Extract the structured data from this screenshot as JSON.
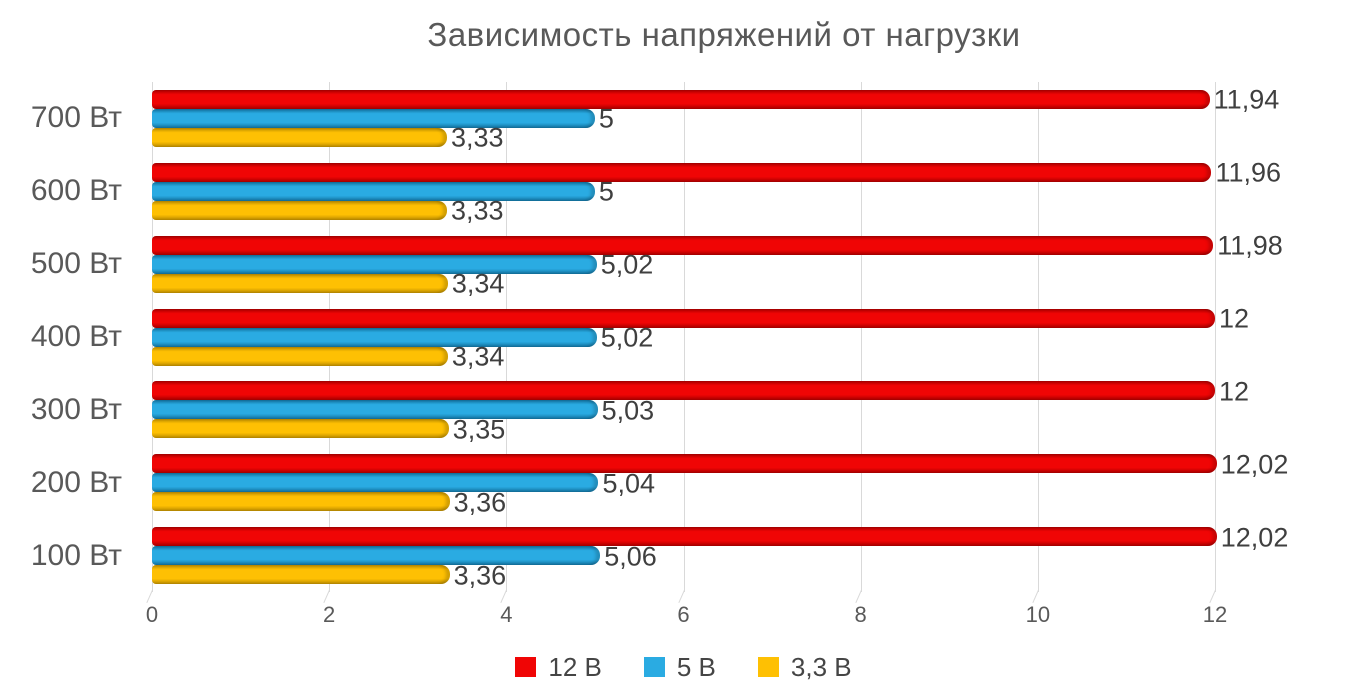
{
  "title": {
    "text": "Зависимость напряжений от нагрузки",
    "color": "#595959"
  },
  "chart_data": {
    "type": "bar",
    "orientation": "horizontal",
    "title": "Зависимость напряжений от нагрузки",
    "categories": [
      "700 Вт",
      "600 Вт",
      "500 Вт",
      "400 Вт",
      "300 Вт",
      "200 Вт",
      "100 Вт"
    ],
    "series": [
      {
        "name": "12 В",
        "color": "#f00505",
        "color_dark": "#ad0000",
        "values": [
          11.94,
          11.96,
          11.98,
          12,
          12,
          12.02,
          12.02
        ],
        "labels": [
          "11,94",
          "11,96",
          "11,98",
          "12",
          "12",
          "12,02",
          "12,02"
        ]
      },
      {
        "name": "5 В",
        "color": "#2aabe2",
        "color_dark": "#1272a0",
        "values": [
          5,
          5,
          5.02,
          5.02,
          5.03,
          5.04,
          5.06
        ],
        "labels": [
          "5",
          "5",
          "5,02",
          "5,02",
          "5,03",
          "5,04",
          "5,06"
        ]
      },
      {
        "name": "3,3 В",
        "color": "#fec003",
        "color_dark": "#bd8d00",
        "values": [
          3.33,
          3.33,
          3.34,
          3.34,
          3.35,
          3.36,
          3.36
        ],
        "labels": [
          "3,33",
          "3,33",
          "3,34",
          "3,34",
          "3,35",
          "3,36",
          "3,36"
        ]
      }
    ],
    "xlim": [
      0,
      12
    ],
    "xticks": [
      0,
      2,
      4,
      6,
      8,
      10,
      12
    ],
    "grid": "vertical-only",
    "gridline_color": "#d9d9d9",
    "axis_text_color": "#595959",
    "data_label_color": "#3f3f3f",
    "legend_position": "bottom"
  }
}
